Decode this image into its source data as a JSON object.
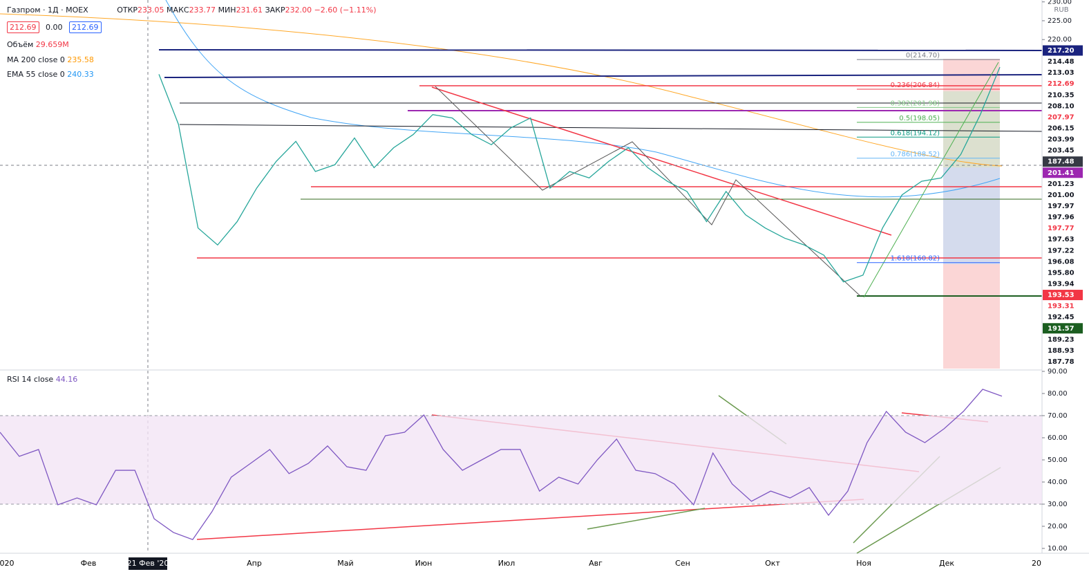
{
  "header": {
    "symbol": "Газпром · 1Д · MOEX",
    "open_label": "ОТКР",
    "open": "233.05",
    "high_label": "МАКС",
    "high": "233.77",
    "low_label": "МИН",
    "low": "231.61",
    "close_label": "ЗАКР",
    "close": "232.00",
    "change": "−2.60 (−1.11%)",
    "sell": "212.69",
    "spread": "0.00",
    "buy": "212.69",
    "volume_label": "Объём",
    "volume": "29.659M",
    "ma_label": "MA 200 close 0",
    "ma_value": "235.58",
    "ema_label": "EMA 55 close 0",
    "ema_value": "240.33",
    "currency": "RUB"
  },
  "chart_data": [
    {
      "type": "line",
      "color": "#26a69a",
      "values": [
        210.8,
        197.5,
        170,
        165.5,
        171.7,
        180.6,
        187.7,
        193,
        185,
        186.8,
        193.9,
        186,
        191.3,
        194.8,
        200.1,
        199.2,
        194.8,
        192.1,
        196.6,
        199.2,
        180.6,
        185,
        183.3,
        187.7,
        191.3,
        186,
        182.4,
        179.7,
        171.7,
        179.7,
        173.5,
        170,
        167.3,
        165.5,
        162.8,
        155.7,
        157.5,
        170,
        178.8,
        182.4,
        183.3,
        189.5,
        200.1,
        212.69
      ],
      "ylim": [
        132.7,
        230.5
      ],
      "yticks": [
        {
          "value": 230,
          "label": "230.00"
        },
        {
          "value": 225,
          "label": "225.00"
        },
        {
          "value": 220,
          "label": "220.00"
        }
      ],
      "fib_levels": [
        {
          "value": 214.7,
          "label": "0(214.70)",
          "color": "#787b86"
        },
        {
          "value": 206.84,
          "label": "0.236(206.84)",
          "color": "#f23645"
        },
        {
          "value": 201.98,
          "label": "0.382(201.98)",
          "color": "#81c784"
        },
        {
          "value": 198.05,
          "label": "0.5(198.05)",
          "color": "#4caf50"
        },
        {
          "value": 194.12,
          "label": "0.618(194.12)",
          "color": "#089981"
        },
        {
          "value": 188.52,
          "label": "0.786(188.52)",
          "color": "#64b5f6"
        },
        {
          "value": 160.82,
          "label": "1.618(160.82)",
          "color": "#2962ff"
        }
      ],
      "price_labels": [
        {
          "text": "217.20",
          "style": "navy"
        },
        {
          "text": "214.48",
          "style": "plain"
        },
        {
          "text": "213.03",
          "style": "plain"
        },
        {
          "text": "212.69",
          "style": "red-text"
        },
        {
          "text": "210.35",
          "style": "plain"
        },
        {
          "text": "208.10",
          "style": "plain"
        },
        {
          "text": "207.97",
          "style": "red-text"
        },
        {
          "text": "206.15",
          "style": "plain"
        },
        {
          "text": "203.99",
          "style": "plain"
        },
        {
          "text": "203.45",
          "style": "plain"
        },
        {
          "text": "187.48",
          "style": "dark"
        },
        {
          "text": "201.41",
          "style": "purple"
        },
        {
          "text": "201.23",
          "style": "plain"
        },
        {
          "text": "201.00",
          "style": "plain"
        },
        {
          "text": "197.97",
          "style": "plain"
        },
        {
          "text": "197.96",
          "style": "plain"
        },
        {
          "text": "197.77",
          "style": "red-text"
        },
        {
          "text": "197.63",
          "style": "plain"
        },
        {
          "text": "197.22",
          "style": "plain"
        },
        {
          "text": "196.08",
          "style": "plain"
        },
        {
          "text": "195.80",
          "style": "plain"
        },
        {
          "text": "193.94",
          "style": "plain"
        },
        {
          "text": "193.53",
          "style": "red-fill"
        },
        {
          "text": "193.31",
          "style": "red-text"
        },
        {
          "text": "192.45",
          "style": "plain"
        },
        {
          "text": "191.57",
          "style": "green-fill"
        },
        {
          "text": "189.23",
          "style": "plain"
        },
        {
          "text": "188.93",
          "style": "plain"
        },
        {
          "text": "187.78",
          "style": "plain"
        }
      ]
    },
    {
      "type": "line",
      "title": "RSI 14 close",
      "value": "44.16",
      "color": "#7e57c2",
      "values": [
        62.5,
        51.6,
        54.7,
        29.7,
        32.8,
        29.7,
        45.3,
        45.3,
        23.4,
        17.2,
        14,
        26.6,
        42.2,
        48.4,
        54.7,
        43.8,
        48.4,
        56.3,
        46.9,
        45.3,
        60.9,
        62.5,
        70.3,
        54.7,
        45.3,
        50,
        54.7,
        54.7,
        35.9,
        42.2,
        39.1,
        50,
        59.4,
        45.3,
        43.8,
        39.1,
        29.7,
        53.1,
        39.1,
        31.3,
        35.9,
        32.8,
        37.5,
        25,
        35.9,
        57.8,
        71.9,
        62.5,
        57.8,
        64.1,
        71.9,
        81.9,
        78.8
      ],
      "ylim": [
        10,
        90
      ],
      "yticks": [
        {
          "value": 90,
          "label": "90.00"
        },
        {
          "value": 80,
          "label": "80.00"
        },
        {
          "value": 70,
          "label": "70.00"
        },
        {
          "value": 60,
          "label": "60.00"
        },
        {
          "value": 50,
          "label": "50.00"
        },
        {
          "value": 40,
          "label": "40.00"
        },
        {
          "value": 30,
          "label": "30.00"
        },
        {
          "value": 20,
          "label": "20.00"
        },
        {
          "value": 10,
          "label": "10.00"
        }
      ],
      "band": [
        30,
        70
      ]
    }
  ],
  "time_axis": {
    "labels": [
      "020",
      "Фев",
      "Апр",
      "Май",
      "Июн",
      "Июл",
      "Авг",
      "Сен",
      "Окт",
      "Ноя",
      "Дек",
      "20"
    ],
    "crosshair": "21 Фев '20"
  }
}
